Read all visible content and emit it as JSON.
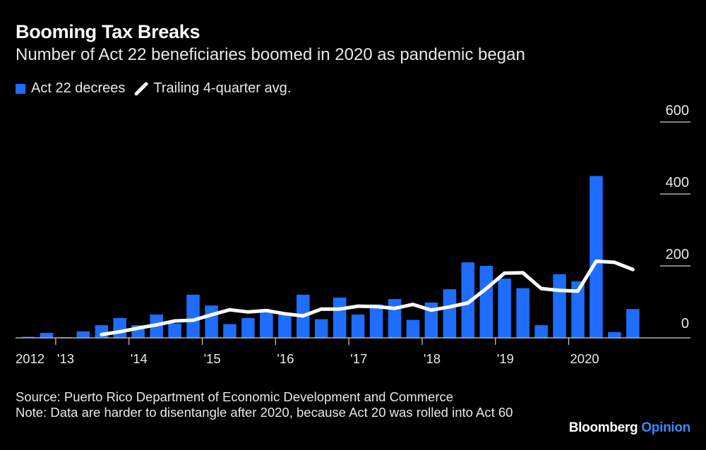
{
  "header": {
    "title": "Booming Tax Breaks",
    "subtitle": "Number of Act 22 beneficiaries boomed in 2020 as pandemic began"
  },
  "legend": {
    "bar_label": "Act 22 decrees",
    "line_label": "Trailing 4-quarter avg."
  },
  "colors": {
    "bar": "#1e6dff",
    "line": "#ffffff",
    "background": "#000000",
    "brand_accent": "#3b87ff"
  },
  "footer": {
    "source": "Source: Puerto Rico Department of Economic Development and Commerce",
    "note": "Note: Data are harder to disentangle after 2020, because Act 20 was rolled into Act 60"
  },
  "brand": {
    "name": "Bloomberg",
    "opinion": "Opinion"
  },
  "chart_data": {
    "type": "bar",
    "title": "Booming Tax Breaks",
    "subtitle": "Number of Act 22 beneficiaries boomed in 2020 as pandemic began",
    "xlabel": "",
    "ylabel": "",
    "ylim": [
      0,
      600
    ],
    "yticks": [
      0,
      200,
      400,
      600
    ],
    "grid": false,
    "legend_position": "top-left",
    "x_tick_labels": [
      "2012",
      "'13",
      "'14",
      "'15",
      "'16",
      "'17",
      "'18",
      "'19",
      "2020"
    ],
    "categories": [
      "2012 Q3",
      "2012 Q4",
      "2013 Q1",
      "2013 Q2",
      "2013 Q3",
      "2013 Q4",
      "2014 Q1",
      "2014 Q2",
      "2014 Q3",
      "2014 Q4",
      "2015 Q1",
      "2015 Q2",
      "2015 Q3",
      "2015 Q4",
      "2016 Q1",
      "2016 Q2",
      "2016 Q3",
      "2016 Q4",
      "2017 Q1",
      "2017 Q2",
      "2017 Q3",
      "2017 Q4",
      "2018 Q1",
      "2018 Q2",
      "2018 Q3",
      "2018 Q4",
      "2019 Q1",
      "2019 Q2",
      "2019 Q3",
      "2019 Q4",
      "2020 Q1",
      "2020 Q2",
      "2020 Q3",
      "2020 Q4"
    ],
    "series": [
      {
        "name": "Act 22 decrees",
        "type": "bar",
        "values": [
          3,
          14,
          2,
          18,
          35,
          55,
          35,
          65,
          40,
          120,
          90,
          38,
          55,
          75,
          68,
          120,
          52,
          112,
          65,
          93,
          108,
          50,
          98,
          135,
          210,
          200,
          165,
          138,
          35,
          177,
          157,
          450,
          16,
          80
        ]
      },
      {
        "name": "Trailing 4-quarter avg.",
        "type": "line",
        "values": [
          null,
          null,
          null,
          null,
          9,
          17,
          27,
          36,
          47,
          49,
          64,
          78,
          72,
          76,
          67,
          61,
          80,
          80,
          88,
          87,
          82,
          93,
          77,
          86,
          97,
          137,
          180,
          181,
          137,
          132,
          130,
          213,
          210,
          190
        ]
      }
    ]
  }
}
